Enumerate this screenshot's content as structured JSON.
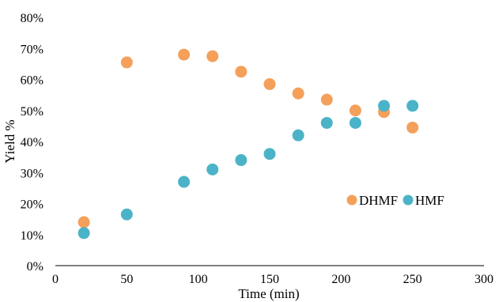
{
  "chart_data": {
    "type": "scatter",
    "title": "",
    "xlabel": "Time (min)",
    "ylabel": "Yield %",
    "xlim": [
      0,
      300
    ],
    "ylim": [
      0,
      80
    ],
    "x_ticks": [
      "0",
      "50",
      "100",
      "150",
      "200",
      "250",
      "300"
    ],
    "y_ticks": [
      "0%",
      "10%",
      "20%",
      "30%",
      "40%",
      "50%",
      "60%",
      "70%",
      "80%"
    ],
    "grid": false,
    "legend": "right",
    "series": [
      {
        "name": "DHMF",
        "color": "#F4A05A",
        "x": [
          20,
          50,
          90,
          110,
          130,
          150,
          170,
          190,
          210,
          230,
          250
        ],
        "y": [
          14,
          65.5,
          68,
          67.5,
          62.5,
          58.5,
          55.5,
          53.5,
          50,
          49.5,
          44.5
        ]
      },
      {
        "name": "HMF",
        "color": "#4BB3C8",
        "x": [
          20,
          50,
          90,
          110,
          130,
          150,
          170,
          190,
          210,
          230,
          250
        ],
        "y": [
          10.5,
          16.5,
          27,
          31,
          34,
          36,
          42,
          46,
          46,
          51.5,
          51.5
        ]
      }
    ]
  }
}
